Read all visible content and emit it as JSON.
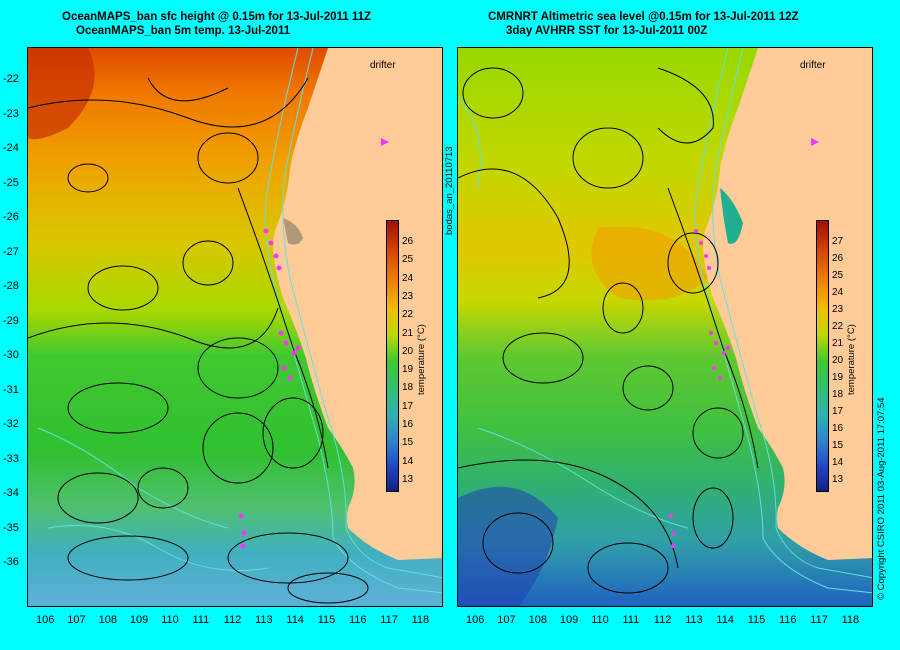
{
  "left_panel": {
    "title_line1": "OceanMAPS_ban sfc height @ 0.15m for 13-Jul-2011 11Z",
    "title_line2": "OceanMAPS_ban 5m temp. 13-Jul-2011"
  },
  "right_panel": {
    "title_line1": "CMRNRT Altimetric sea level  @0.15m  for 13-Jul-2011 12Z",
    "title_line2": "3day AVHRR SST for 13-Jul-2011 00Z"
  },
  "legend": {
    "drifter": "drifter",
    "drifter_color": "#ff33ff"
  },
  "side_labels": {
    "id": "bodas_an_20110713",
    "copyright": "© Copyright CSIRO 2011   03-Aug-2011 17:07:54"
  },
  "axes": {
    "lon_ticks": [
      "106",
      "107",
      "108",
      "109",
      "110",
      "111",
      "112",
      "113",
      "114",
      "115",
      "116",
      "117",
      "118"
    ],
    "lat_ticks": [
      "-22",
      "-23",
      "-24",
      "-25",
      "-26",
      "-27",
      "-28",
      "-29",
      "-30",
      "-31",
      "-32",
      "-33",
      "-34",
      "-35",
      "-36"
    ],
    "lon_range": [
      105.5,
      118.3
    ],
    "lat_range": [
      -36.6,
      -21.6
    ]
  },
  "colorbar": {
    "title": "temperature (°C)",
    "left_ticks": [
      "26",
      "25",
      "24",
      "23",
      "22",
      "21",
      "20",
      "19",
      "18",
      "17",
      "16",
      "15",
      "14",
      "13"
    ],
    "right_ticks": [
      "27",
      "26",
      "25",
      "24",
      "23",
      "22",
      "21",
      "20",
      "19",
      "18",
      "17",
      "16",
      "15",
      "14",
      "13"
    ]
  },
  "colors": {
    "background": "#00ffff",
    "land": "#ffcc99",
    "contour": "#000000",
    "isobath": "#66dddd"
  }
}
